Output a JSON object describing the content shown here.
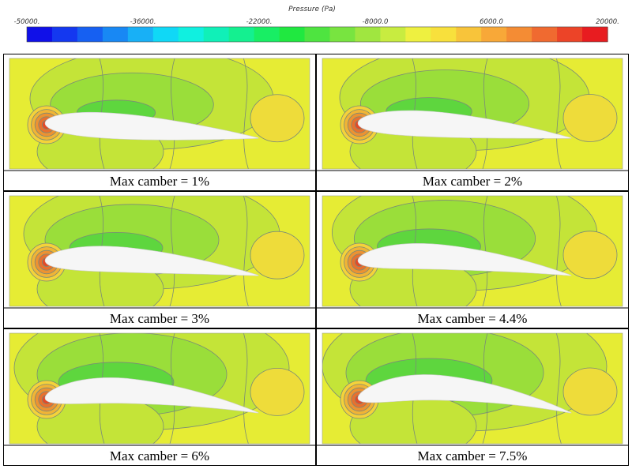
{
  "colorbar": {
    "title": "Pressure (Pa)",
    "ticks": [
      "-50000.",
      "-36000.",
      "-22000.",
      "-8000.0",
      "6000.0",
      "20000."
    ],
    "tick_values": [
      -50000,
      -36000,
      -22000,
      -8000,
      6000,
      20000
    ],
    "colors": [
      "#1010e8",
      "#1438f0",
      "#1660f2",
      "#1888f4",
      "#18b0f6",
      "#10d8f6",
      "#10f0e0",
      "#10f0b8",
      "#14f090",
      "#18ee64",
      "#20e840",
      "#4ee440",
      "#78e440",
      "#a0e640",
      "#c8ec40",
      "#eef040",
      "#f8e03c",
      "#f8c43a",
      "#f8a838",
      "#f48c34",
      "#f06a30",
      "#ec4428",
      "#e81c20"
    ]
  },
  "panels": [
    {
      "caption": "Max camber = 1%",
      "camber": 1.0
    },
    {
      "caption": "Max camber = 2%",
      "camber": 2.0
    },
    {
      "caption": "Max camber = 3%",
      "camber": 3.0
    },
    {
      "caption": "Max camber = 4.4%",
      "camber": 4.4
    },
    {
      "caption": "Max camber = 6%",
      "camber": 6.0
    },
    {
      "caption": "Max camber = 7.5%",
      "camber": 7.5
    }
  ],
  "theme": {
    "field": "#e6ec34",
    "suction_light": "#c4e438",
    "suction_mid": "#9ade3a",
    "suction_deep": "#5ed63e",
    "stagnation": [
      "#f4d23a",
      "#f0b436",
      "#ec9232",
      "#e8702e",
      "#e24a28"
    ],
    "wake": "#eedc3a",
    "contour": "#7a8a78",
    "airfoil": "#f6f6f6",
    "border": "#000000"
  }
}
